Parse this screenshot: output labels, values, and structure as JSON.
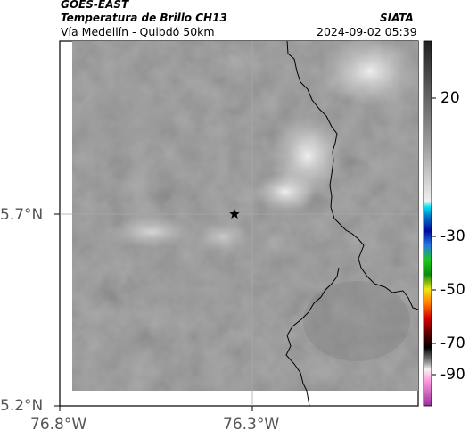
{
  "header": {
    "source": "GOES-EAST",
    "product": "Temperatura de Brillo CH13",
    "provider": "SIATA",
    "region": "Vía Medellín - Quibdó 50km",
    "datetime": "2024-09-02 05:39"
  },
  "axes": {
    "lat_ticks": [
      "5.7°N",
      "5.2°N"
    ],
    "lon_ticks": [
      "76.8°W",
      "76.3°W"
    ]
  },
  "colorbar": {
    "ticks": [
      "20",
      "-30",
      "-50",
      "-70",
      "-90"
    ],
    "colors": {
      "gray_dark": "#222222",
      "gray_mid": "#808080",
      "gray_light": "#f0f0f0",
      "cyan": "#00c8e0",
      "blue": "#000a9c",
      "green": "#1ec81e",
      "yellow": "#f0e614",
      "orange": "#ff7800",
      "red": "#d20000",
      "black": "#000000",
      "pink": "#ff9ce0",
      "magenta": "#9b2f9b"
    }
  },
  "marker": {
    "icon": "star-marker-icon"
  }
}
